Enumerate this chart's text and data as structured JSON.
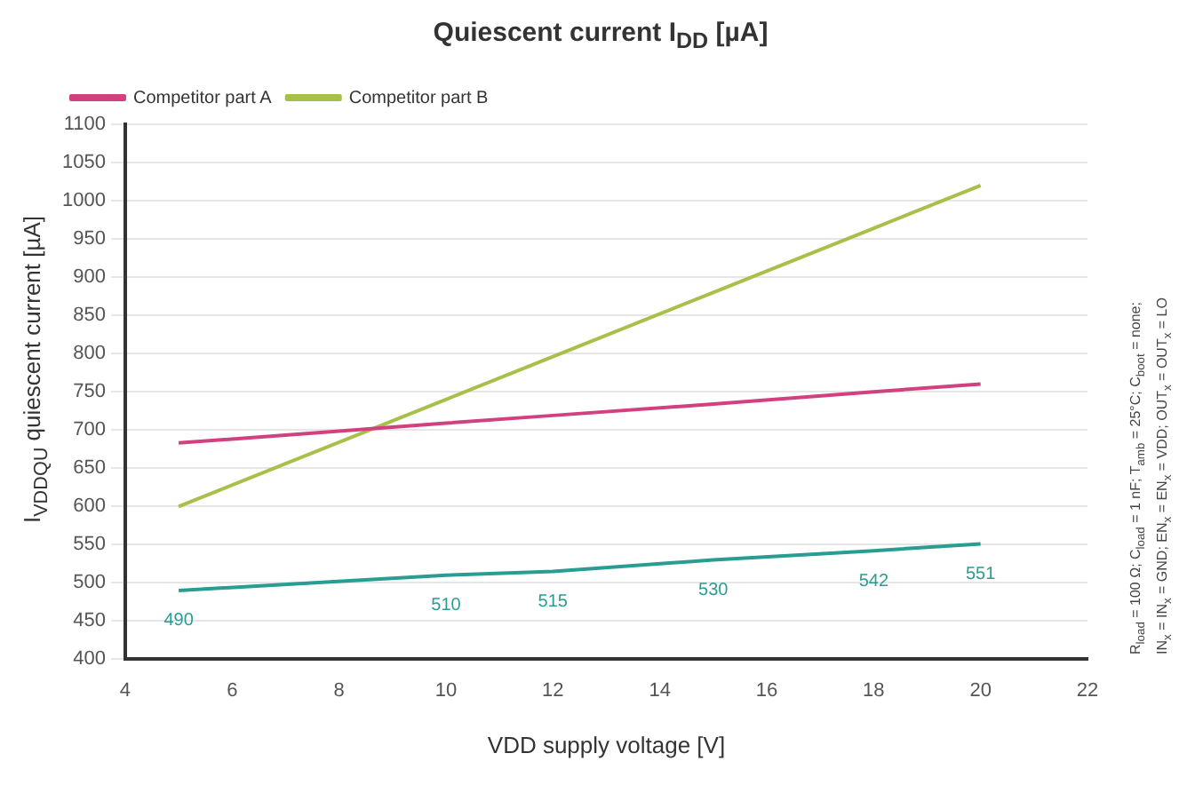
{
  "chart_data": {
    "type": "line",
    "title": "Quiescent current I$_{DD}$ [µA]",
    "xlabel": "VDD supply voltage [V]",
    "ylabel": "I$_{VDDQU}$ quiescent current [µA]",
    "x": [
      5,
      10,
      12,
      15,
      18,
      20
    ],
    "series": [
      {
        "color": "#2a9d93",
        "values": [
          490,
          510,
          515,
          530,
          542,
          551
        ],
        "value_labels": [
          "490",
          "510",
          "515",
          "530",
          "542",
          "551"
        ]
      },
      {
        "name": "Competitor part A",
        "color": "#d2417f",
        "values": [
          683,
          709,
          719,
          734,
          750,
          760
        ]
      },
      {
        "name": "Competitor part B",
        "color": "#a8c04a",
        "values": [
          600,
          740,
          796,
          880,
          964,
          1020
        ]
      }
    ],
    "xlim": [
      4,
      22
    ],
    "xticks": [
      4,
      6,
      8,
      10,
      12,
      14,
      16,
      18,
      20,
      22
    ],
    "ylim": [
      400,
      1100
    ],
    "yticks": [
      400,
      450,
      500,
      550,
      600,
      650,
      700,
      750,
      800,
      850,
      900,
      950,
      1000,
      1050,
      1100
    ],
    "grid": "y",
    "legend": "top left",
    "marker": "none",
    "line_style": "solid",
    "annotations": [
      "R$_{load}$ = 100 Ω; C$_{load}$ = 1 nF; T$_{amb}$ = 25°C; C$_{boot}$ = none;",
      "IN$_{x}$ = IN$_{x}$ = GND; EN$_{x}$ = EN$_{x}$ = VDD; OUT$_{x}$ = OUT$_{x}$ = LO"
    ]
  }
}
